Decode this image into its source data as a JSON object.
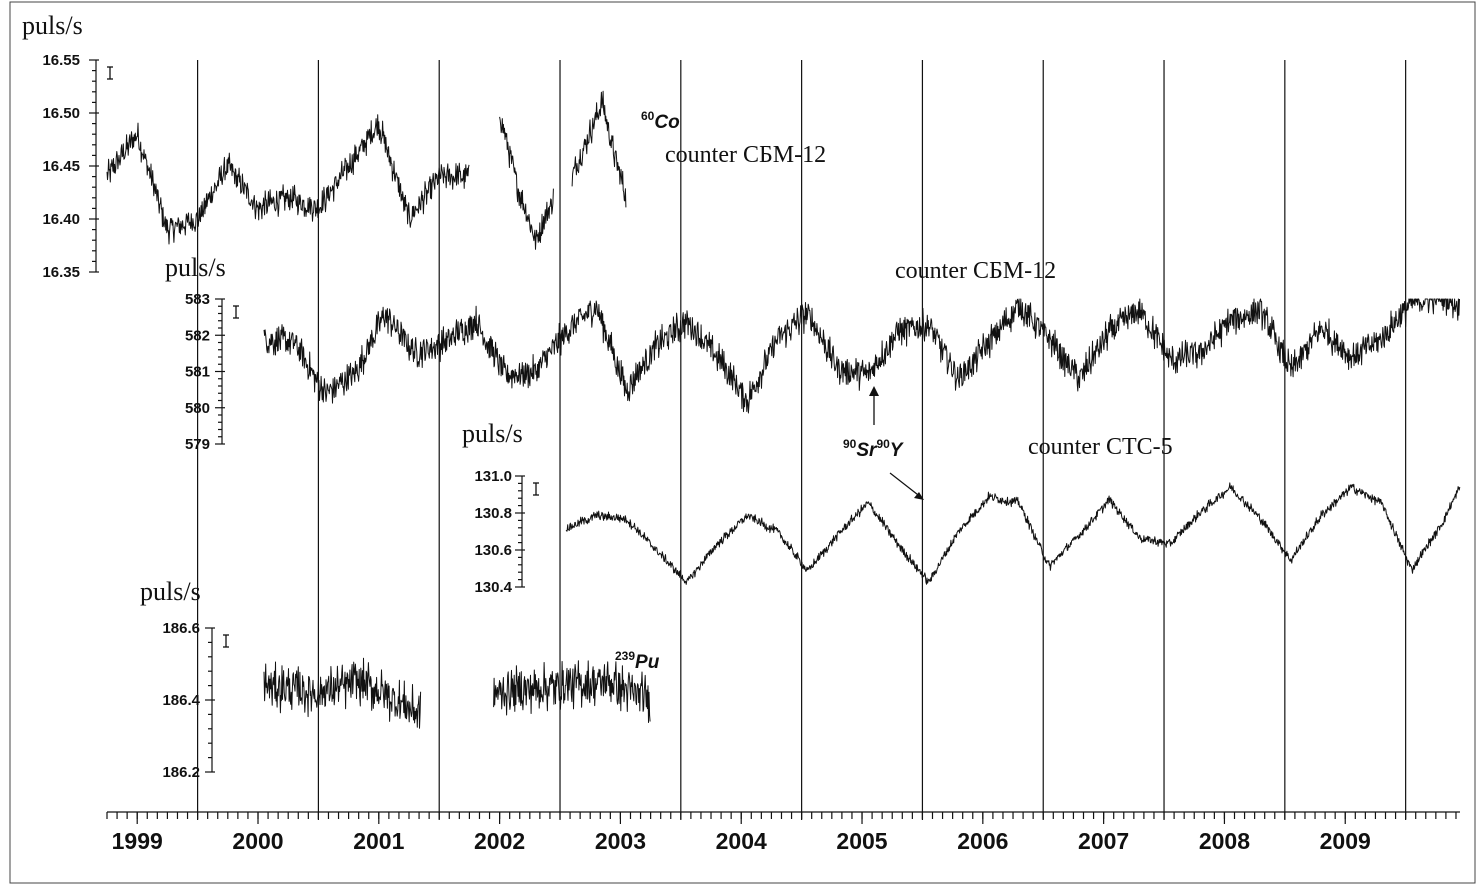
{
  "chart_data": {
    "type": "line",
    "x_axis": {
      "tick_labels": [
        "1999",
        "2000",
        "2001",
        "2002",
        "2003",
        "2004",
        "2005",
        "2006",
        "2007",
        "2008",
        "2009"
      ],
      "range": [
        1998.75,
        2009.95
      ]
    },
    "year_boundaries": [
      1999.5,
      2000.5,
      2001.5,
      2002.5,
      2003.5,
      2004.5,
      2005.5,
      2006.5,
      2007.5,
      2008.5,
      2009.5
    ],
    "panels": [
      {
        "id": "co60",
        "ylabel": "puls/s",
        "ylim": [
          16.35,
          16.55
        ],
        "yticks": [
          "16.55",
          "16.50",
          "16.45",
          "16.40",
          "16.35"
        ],
        "series_label": "counter СБМ-12",
        "isotope": {
          "mass": "60",
          "symbol": "Co"
        },
        "segments": [
          {
            "x0": 1998.75,
            "x1": 2001.75,
            "points": [
              [
                1998.75,
                16.44
              ],
              [
                1999.0,
                16.48
              ],
              [
                1999.25,
                16.39
              ],
              [
                1999.5,
                16.4
              ],
              [
                1999.75,
                16.45
              ],
              [
                2000.0,
                16.41
              ],
              [
                2000.25,
                16.42
              ],
              [
                2000.5,
                16.41
              ],
              [
                2000.75,
                16.45
              ],
              [
                2001.0,
                16.49
              ],
              [
                2001.25,
                16.4
              ],
              [
                2001.5,
                16.44
              ],
              [
                2001.75,
                16.44
              ]
            ]
          },
          {
            "x0": 2002.0,
            "x1": 2002.45,
            "points": [
              [
                2002.0,
                16.5
              ],
              [
                2002.15,
                16.43
              ],
              [
                2002.3,
                16.38
              ],
              [
                2002.45,
                16.42
              ]
            ]
          },
          {
            "x0": 2002.6,
            "x1": 2003.05,
            "points": [
              [
                2002.6,
                16.44
              ],
              [
                2002.85,
                16.51
              ],
              [
                2002.95,
                16.46
              ],
              [
                2003.05,
                16.42
              ]
            ]
          }
        ]
      },
      {
        "id": "sr90_sbm",
        "ylabel": "puls/s",
        "ylim": [
          579,
          583
        ],
        "yticks": [
          "583",
          "582",
          "581",
          "580",
          "579"
        ],
        "series_label": "counter СБМ-12",
        "segments": [
          {
            "x0": 2000.05,
            "x1": 2009.95,
            "points": [
              [
                2000.05,
                581.9
              ],
              [
                2000.3,
                581.8
              ],
              [
                2000.55,
                580.4
              ],
              [
                2000.8,
                580.9
              ],
              [
                2001.05,
                582.6
              ],
              [
                2001.3,
                581.5
              ],
              [
                2001.55,
                581.8
              ],
              [
                2001.8,
                582.4
              ],
              [
                2002.05,
                580.9
              ],
              [
                2002.3,
                581.0
              ],
              [
                2002.55,
                582.1
              ],
              [
                2002.8,
                582.8
              ],
              [
                2003.05,
                580.5
              ],
              [
                2003.3,
                581.7
              ],
              [
                2003.55,
                582.4
              ],
              [
                2003.8,
                581.4
              ],
              [
                2004.05,
                580.2
              ],
              [
                2004.3,
                581.9
              ],
              [
                2004.55,
                582.6
              ],
              [
                2004.8,
                581.1
              ],
              [
                2005.05,
                580.9
              ],
              [
                2005.3,
                582.1
              ],
              [
                2005.55,
                582.3
              ],
              [
                2005.8,
                580.8
              ],
              [
                2006.05,
                581.8
              ],
              [
                2006.3,
                582.8
              ],
              [
                2006.55,
                581.9
              ],
              [
                2006.8,
                580.8
              ],
              [
                2007.05,
                582.1
              ],
              [
                2007.3,
                582.7
              ],
              [
                2007.55,
                581.3
              ],
              [
                2007.8,
                581.5
              ],
              [
                2008.05,
                582.4
              ],
              [
                2008.3,
                582.7
              ],
              [
                2008.55,
                581.0
              ],
              [
                2008.8,
                582.2
              ],
              [
                2009.05,
                581.4
              ],
              [
                2009.3,
                581.9
              ],
              [
                2009.55,
                582.9
              ],
              [
                2009.8,
                583.1
              ],
              [
                2009.95,
                582.8
              ]
            ]
          }
        ]
      },
      {
        "id": "sr90_cts",
        "ylabel": "puls/s",
        "ylim": [
          130.35,
          131.05
        ],
        "yticks": [
          "131.0",
          "130.8",
          "130.6",
          "130.4"
        ],
        "series_label": "counter СТС-5",
        "isotope": {
          "mass1": "90",
          "symbol1": "Sr",
          "mass2": "90",
          "symbol2": "Y"
        },
        "segments": [
          {
            "x0": 2002.55,
            "x1": 2009.95,
            "points": [
              [
                2002.55,
                130.72
              ],
              [
                2002.8,
                130.8
              ],
              [
                2003.05,
                130.78
              ],
              [
                2003.3,
                130.58
              ],
              [
                2003.55,
                130.38
              ],
              [
                2003.8,
                130.62
              ],
              [
                2004.05,
                130.8
              ],
              [
                2004.3,
                130.7
              ],
              [
                2004.55,
                130.45
              ],
              [
                2004.8,
                130.68
              ],
              [
                2005.05,
                130.88
              ],
              [
                2005.3,
                130.62
              ],
              [
                2005.55,
                130.38
              ],
              [
                2005.8,
                130.7
              ],
              [
                2006.05,
                130.92
              ],
              [
                2006.3,
                130.88
              ],
              [
                2006.55,
                130.48
              ],
              [
                2006.8,
                130.68
              ],
              [
                2007.05,
                130.9
              ],
              [
                2007.3,
                130.66
              ],
              [
                2007.55,
                130.62
              ],
              [
                2007.8,
                130.82
              ],
              [
                2008.05,
                130.98
              ],
              [
                2008.3,
                130.78
              ],
              [
                2008.55,
                130.52
              ],
              [
                2008.8,
                130.8
              ],
              [
                2009.05,
                130.98
              ],
              [
                2009.3,
                130.88
              ],
              [
                2009.55,
                130.46
              ],
              [
                2009.8,
                130.75
              ],
              [
                2009.95,
                130.98
              ]
            ]
          }
        ]
      },
      {
        "id": "pu239",
        "ylabel": "puls/s",
        "ylim": [
          186.2,
          186.6
        ],
        "yticks": [
          "186.6",
          "186.4",
          "186.2"
        ],
        "isotope": {
          "mass": "239",
          "symbol": "Pu"
        },
        "segments": [
          {
            "x0": 2000.05,
            "x1": 2001.35,
            "points": [
              [
                2000.05,
                186.44
              ],
              [
                2000.5,
                186.42
              ],
              [
                2000.85,
                186.45
              ],
              [
                2001.35,
                186.36
              ]
            ]
          },
          {
            "x0": 2001.95,
            "x1": 2003.25,
            "points": [
              [
                2001.95,
                186.42
              ],
              [
                2002.5,
                186.44
              ],
              [
                2002.9,
                186.45
              ],
              [
                2003.25,
                186.4
              ]
            ]
          }
        ]
      }
    ]
  }
}
